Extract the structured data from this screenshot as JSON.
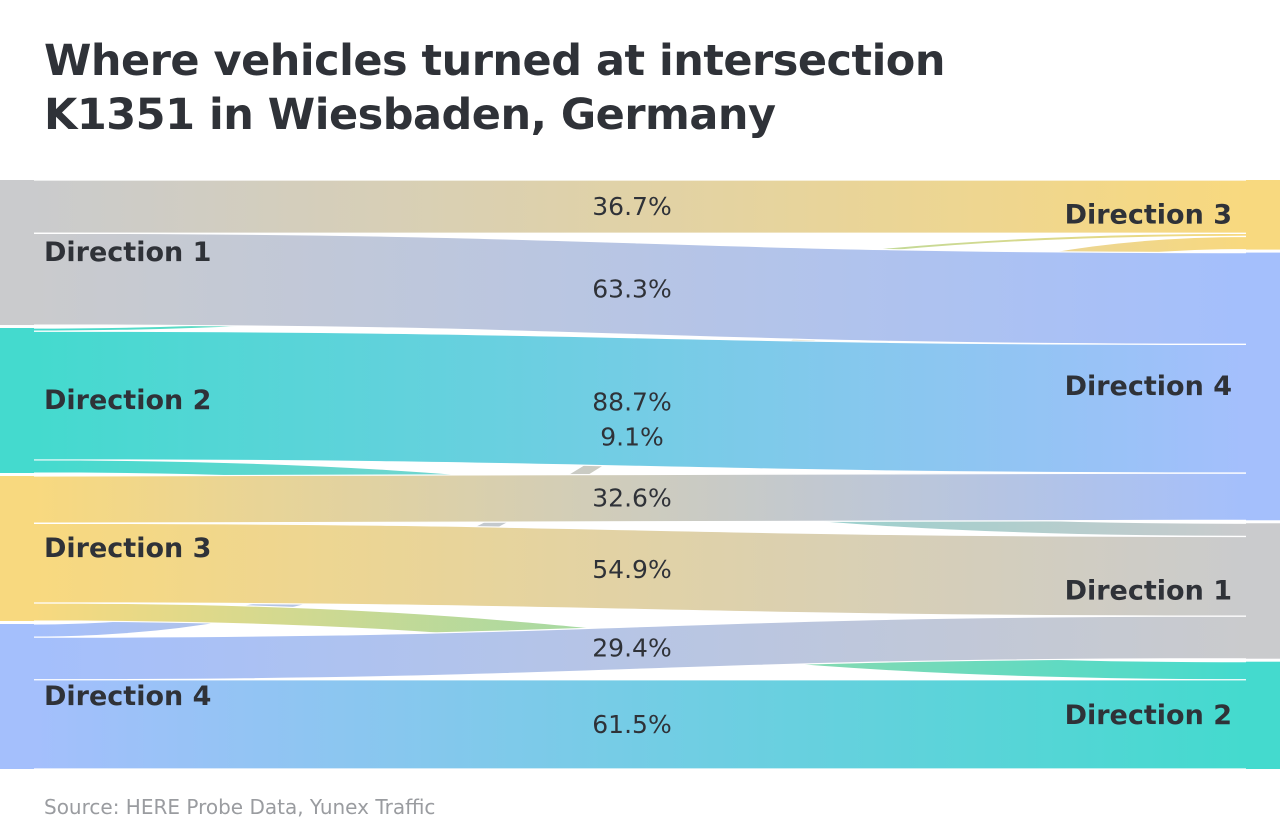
{
  "title_lines": [
    "Where vehicles turned at intersection",
    "K1351 in Wiesbaden, Germany"
  ],
  "source": "Source: HERE Probe Data, Yunex Traffic",
  "colors": {
    "Direction 1": "#cacbcd",
    "Direction 2": "#44dace",
    "Direction 3": "#f8d97f",
    "Direction 4": "#a4bffc"
  },
  "chart_data": {
    "type": "sankey",
    "sources": [
      "Direction 1",
      "Direction 2",
      "Direction 3",
      "Direction 4"
    ],
    "targets": [
      "Direction 3",
      "Direction 4",
      "Direction 1",
      "Direction 2"
    ],
    "flows": [
      {
        "from": "Direction 1",
        "to": "Direction 3",
        "value": 36.7,
        "label": "36.7%"
      },
      {
        "from": "Direction 1",
        "to": "Direction 4",
        "value": 63.3,
        "label": "63.3%"
      },
      {
        "from": "Direction 2",
        "to": "Direction 3",
        "value": 2.2,
        "label": ""
      },
      {
        "from": "Direction 2",
        "to": "Direction 4",
        "value": 88.7,
        "label": "88.7%"
      },
      {
        "from": "Direction 2",
        "to": "Direction 1",
        "value": 9.1,
        "label": ""
      },
      {
        "from": "Direction 3",
        "to": "Direction 4",
        "value": 32.6,
        "label": "32.6%"
      },
      {
        "from": "Direction 3",
        "to": "Direction 1",
        "value": 54.9,
        "label": "54.9%"
      },
      {
        "from": "Direction 3",
        "to": "Direction 2",
        "value": 12.5,
        "label": ""
      },
      {
        "from": "Direction 4",
        "to": "Direction 3",
        "value": 9.1,
        "label": "9.1%"
      },
      {
        "from": "Direction 4",
        "to": "Direction 1",
        "value": 29.4,
        "label": "29.4%"
      },
      {
        "from": "Direction 4",
        "to": "Direction 2",
        "value": 61.5,
        "label": "61.5%"
      }
    ]
  }
}
